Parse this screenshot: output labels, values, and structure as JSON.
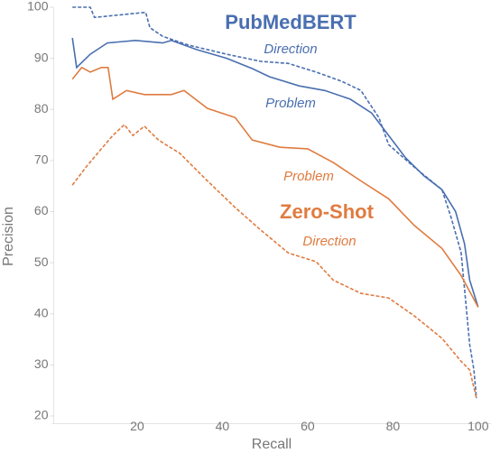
{
  "chart_data": {
    "type": "line",
    "x_label": "Recall",
    "y_label": "Precision",
    "xlim": [
      0,
      103
    ],
    "ylim": [
      18.5,
      100
    ],
    "xticks": [
      20,
      40,
      60,
      80,
      100
    ],
    "yticks": [
      20,
      30,
      40,
      50,
      60,
      70,
      80,
      90,
      100
    ],
    "annotations": [
      {
        "text": "PubMedBERT",
        "color": "#4a6fb0"
      },
      {
        "text": "Zero-Shot",
        "color": "#e07b40"
      }
    ],
    "series": [
      {
        "name": "Direction",
        "color": "#4a6fb0",
        "dashed": true,
        "x": [
          4.8,
          9,
          10,
          19.6,
          22,
          23,
          26,
          32,
          41,
          49,
          55.5,
          62,
          68,
          72.5,
          76.7,
          79,
          85,
          91.5,
          93.6,
          96,
          97,
          98,
          99,
          99.6
        ],
        "values": [
          100,
          100,
          98,
          98.8,
          99,
          96,
          94.3,
          92.6,
          90.8,
          89.4,
          89,
          87.3,
          85.5,
          83.7,
          78.4,
          73.1,
          68.7,
          64.3,
          59,
          52,
          43,
          34,
          29,
          23.5
        ]
      },
      {
        "name": "Problem",
        "color": "#4a6fb0",
        "dashed": false,
        "x": [
          4.8,
          5.8,
          9,
          13,
          19.6,
          26,
          28,
          34,
          41,
          47,
          51,
          58,
          64,
          70,
          75,
          79,
          83,
          87.3,
          91.5,
          94.7,
          96.8,
          98,
          100
        ],
        "values": [
          94,
          88.2,
          90.8,
          93,
          93.5,
          93,
          93.5,
          91.7,
          90,
          88,
          86.4,
          84.6,
          83.7,
          82,
          79.3,
          74.9,
          70.5,
          67,
          64.3,
          60,
          53.7,
          46.6,
          41.3
        ]
      },
      {
        "name": "Problem",
        "color": "#e07b40",
        "dashed": false,
        "x": [
          4.8,
          7,
          9,
          11.6,
          13.2,
          14.3,
          17.5,
          21.7,
          28,
          31,
          36.5,
          43,
          47,
          53.5,
          60,
          66,
          72.5,
          79,
          85,
          91.5,
          96,
          100
        ],
        "values": [
          85.9,
          88.2,
          87.3,
          88.2,
          88.2,
          82,
          83.7,
          82.9,
          82.9,
          83.7,
          80.2,
          78.4,
          74,
          72.6,
          72.3,
          69.6,
          66,
          62.5,
          57.3,
          52.8,
          47.5,
          41.3
        ]
      },
      {
        "name": "Direction",
        "color": "#e07b40",
        "dashed": true,
        "x": [
          4.8,
          8,
          11.6,
          14.3,
          17,
          19,
          21.7,
          25,
          30,
          36.5,
          43,
          49,
          55.5,
          62,
          66,
          72.5,
          79,
          85,
          91.5,
          96,
          98,
          99.6
        ],
        "values": [
          65.2,
          68.7,
          72.3,
          74.9,
          77,
          74.9,
          76.7,
          74,
          71.4,
          66,
          60.8,
          56.4,
          51.9,
          50.2,
          46.6,
          44,
          43.1,
          39.6,
          35.2,
          30.7,
          29,
          23.5
        ]
      }
    ]
  }
}
